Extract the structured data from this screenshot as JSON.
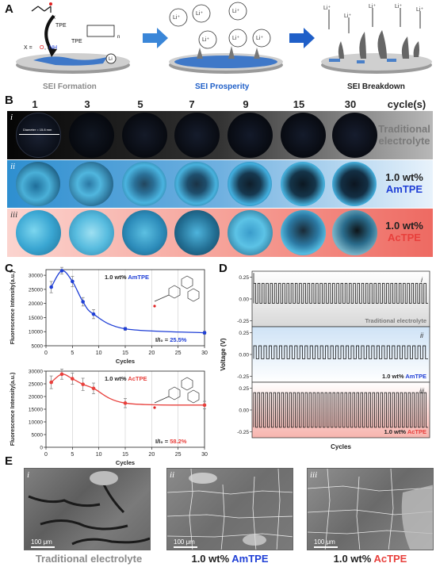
{
  "panels": {
    "a": "A",
    "b": "B",
    "c": "C",
    "d": "D",
    "e": "E"
  },
  "panel_a": {
    "stages": [
      "SEI Formation",
      "SEI Prosperity",
      "SEI Breakdown"
    ],
    "x_label_prefix": "X = ",
    "x_o": "O",
    "x_sep": ", ",
    "x_nh": "NH",
    "x_label": "X",
    "tpe": "TPE",
    "n_label": "n",
    "li": "Li",
    "li_ion": "Li⁺"
  },
  "panel_b": {
    "cycles": [
      "1",
      "3",
      "5",
      "7",
      "9",
      "15",
      "30"
    ],
    "cycles_unit": "cycle(s)",
    "rows": [
      {
        "roman": "i",
        "label_line1": "Traditional",
        "label_line2": "electrolyte",
        "label_line3": ""
      },
      {
        "roman": "ii",
        "label_line1": "1.0 wt%",
        "label_line2": "AmTPE",
        "label_line3": ""
      },
      {
        "roman": "iii",
        "label_line1": "1.0 wt%",
        "label_line2": "AcTPE",
        "label_line3": ""
      }
    ],
    "diameter_note": "Diameter = 15.8 mm"
  },
  "panel_c": {
    "top": {
      "legend_prefix": "1.0 wt% ",
      "legend_name": "AmTPE",
      "ratio_label": "I/I₀ = ",
      "ratio_value": "25.5%",
      "color": "#1f3fd6"
    },
    "bottom": {
      "legend_prefix": "1.0 wt% ",
      "legend_name": "AcTPE",
      "ratio_label": "I/I₀ = ",
      "ratio_value": "58.2%",
      "color": "#e8403c"
    },
    "ylabel": "Fluorescence Intensity(a.u.)",
    "xlabel": "Cycles"
  },
  "panel_d": {
    "ylabel": "Voltage (V)",
    "xlabel": "Cycles",
    "rows": [
      {
        "roman": "i",
        "label": "Traditional electrolyte",
        "label_prefix": "",
        "label_name": ""
      },
      {
        "roman": "ii",
        "label": "",
        "label_prefix": "1.0 wt% ",
        "label_name": "AmTPE"
      },
      {
        "roman": "iii",
        "label": "",
        "label_prefix": "1.0 wt% ",
        "label_name": "AcTPE"
      }
    ]
  },
  "panel_e": {
    "items": [
      {
        "roman": "i",
        "label": "Traditional electrolyte",
        "label_prefix": "",
        "label_name": "",
        "scale": "100 μm"
      },
      {
        "roman": "ii",
        "label": "",
        "label_prefix": "1.0 wt% ",
        "label_name": "AmTPE",
        "scale": "100 μm"
      },
      {
        "roman": "iii",
        "label": "",
        "label_prefix": "1.0 wt% ",
        "label_name": "AcTPE",
        "scale": "100 μm"
      }
    ]
  },
  "colors": {
    "amtpe": "#1f3fd6",
    "actpe": "#e8403c",
    "gray_label": "#8a8a8a",
    "arrow_blue": "#3a86d8"
  },
  "chart_data": [
    {
      "type": "line",
      "title": "",
      "xlabel": "Cycles",
      "ylabel": "Fluorescence Intensity(a.u.)",
      "xlim": [
        0,
        30
      ],
      "ylim": [
        5000,
        32000
      ],
      "xticks": [
        0,
        5,
        10,
        15,
        20,
        25,
        30
      ],
      "yticks": [
        5000,
        10000,
        15000,
        20000,
        25000,
        30000
      ],
      "grid": "vertical",
      "series": [
        {
          "name": "1.0 wt% AmTPE",
          "x": [
            1,
            3,
            5,
            7,
            9,
            15,
            30
          ],
          "y": [
            25800,
            31600,
            27800,
            20600,
            16200,
            11000,
            9600
          ],
          "err": [
            2000,
            1200,
            1800,
            1500,
            1600,
            500,
            500
          ]
        }
      ]
    },
    {
      "type": "line",
      "title": "",
      "xlabel": "Cycles",
      "ylabel": "Fluorescence Intensity(a.u.)",
      "xlim": [
        0,
        30
      ],
      "ylim": [
        0,
        30000
      ],
      "xticks": [
        0,
        5,
        10,
        15,
        20,
        25,
        30
      ],
      "yticks": [
        0,
        5000,
        10000,
        15000,
        20000,
        25000,
        30000
      ],
      "grid": "vertical",
      "series": [
        {
          "name": "1.0 wt% AcTPE",
          "x": [
            1,
            3,
            5,
            7,
            9,
            15,
            30
          ],
          "y": [
            25600,
            28800,
            27000,
            24800,
            23200,
            17400,
            16600
          ],
          "err": [
            2500,
            2000,
            2200,
            2400,
            2100,
            1800,
            1500
          ]
        }
      ]
    },
    {
      "type": "line",
      "title": "",
      "xlabel": "Cycles",
      "ylabel": "Voltage (V)",
      "yticks": [
        -0.25,
        0.0,
        0.25
      ],
      "series": [
        {
          "name": "Traditional electrolyte",
          "cycles": 42,
          "upper": 0.18,
          "lower": -0.05,
          "spike": 0.3
        },
        {
          "name": "1.0 wt% AmTPE",
          "cycles": 34,
          "upper": 0.1,
          "lower": -0.05
        },
        {
          "name": "1.0 wt% AcTPE",
          "cycles": 44,
          "upper": 0.2,
          "lower": -0.2
        }
      ]
    }
  ]
}
